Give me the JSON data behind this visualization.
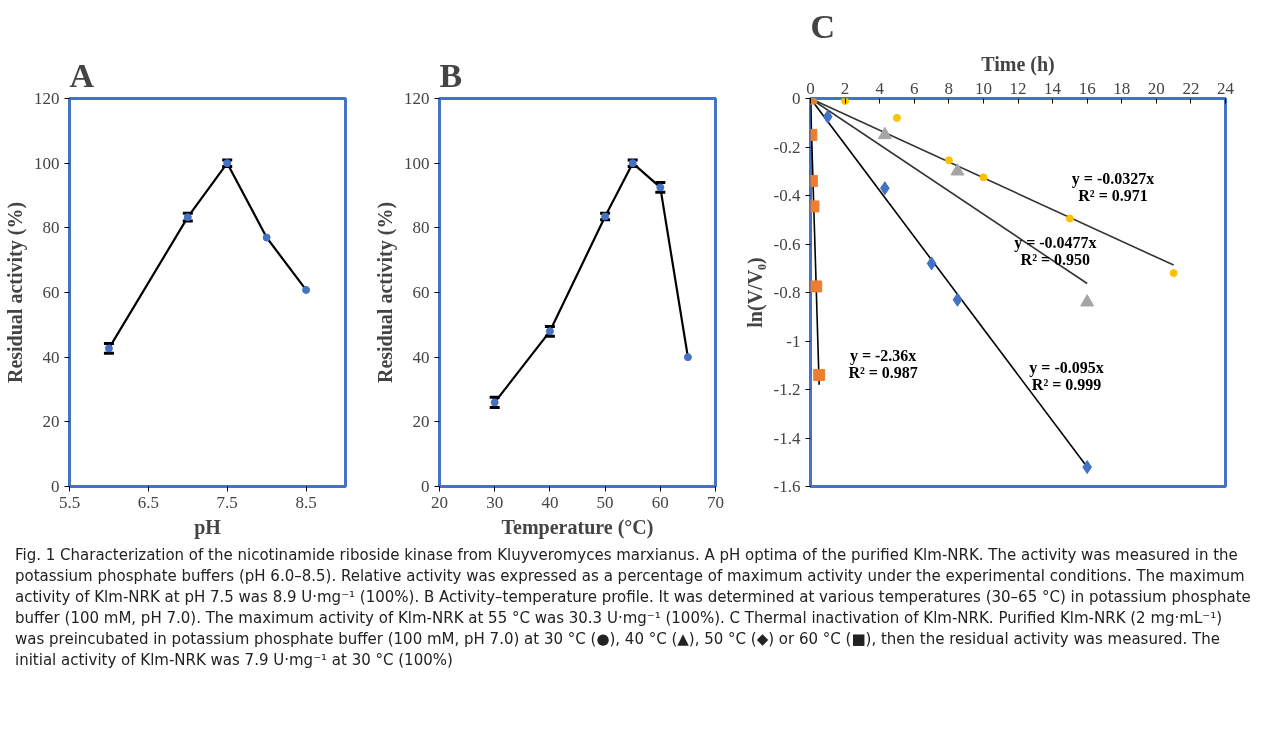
{
  "chart_data": [
    {
      "type": "line",
      "title": "A",
      "xlabel": "pH",
      "ylabel": "Residual activity (%)",
      "marker": "circle",
      "line_style": "solid",
      "grid": false,
      "x": [
        6,
        7,
        7.5,
        8,
        8.5
      ],
      "xlim": [
        5.5,
        9.0
      ],
      "xticks": [
        5.5,
        6.5,
        7.5,
        8.5
      ],
      "ylim": [
        0,
        120
      ],
      "yticks": [
        0,
        20,
        40,
        60,
        80,
        100,
        120
      ],
      "series": [
        {
          "color": "#4472c4",
          "values": [
            42.7,
            83.3,
            100,
            77,
            60.8
          ],
          "errors": [
            1.5,
            1.2,
            1,
            null,
            null
          ]
        }
      ]
    },
    {
      "type": "line",
      "title": "B",
      "xlabel": "Temperature (°C)",
      "ylabel": "Residual activity (%)",
      "marker": "circle",
      "line_style": "solid",
      "grid": false,
      "x": [
        30,
        40,
        50,
        55,
        60,
        65
      ],
      "xlim": [
        20,
        70
      ],
      "xticks": [
        20,
        30,
        40,
        50,
        60,
        70
      ],
      "ylim": [
        0,
        120
      ],
      "yticks": [
        0,
        20,
        40,
        60,
        80,
        100,
        120
      ],
      "series": [
        {
          "color": "#4472c4",
          "values": [
            26,
            48,
            83.5,
            100,
            92.5,
            40
          ],
          "errors": [
            1.6,
            1.5,
            1,
            1,
            1.5,
            null
          ]
        }
      ]
    },
    {
      "type": "scatter",
      "title": "C",
      "xlabel": "Time (h)",
      "ylabel": "ln(V/V₀)",
      "grid": false,
      "xlim": [
        0,
        24
      ],
      "xticks": [
        0,
        2,
        4,
        6,
        8,
        10,
        12,
        14,
        16,
        18,
        20,
        22,
        24
      ],
      "ylim": [
        -1.6,
        0
      ],
      "yticks": [
        -1.6,
        -1.4,
        -1.2,
        -1,
        -0.8,
        -0.6,
        -0.4,
        -0.2,
        0
      ],
      "series": [
        {
          "type": "line",
          "color": "#333333",
          "marker": "none",
          "x": [
            0,
            21
          ],
          "values": [
            0,
            -0.687
          ]
        },
        {
          "type": "line",
          "color": "#333333",
          "marker": "none",
          "x": [
            0,
            16
          ],
          "values": [
            0,
            -0.763
          ]
        },
        {
          "type": "line",
          "color": "#000000",
          "marker": "none",
          "x": [
            0,
            16
          ],
          "values": [
            0,
            -1.52
          ]
        },
        {
          "type": "line",
          "color": "#000000",
          "marker": "none",
          "x": [
            0,
            0.5
          ],
          "values": [
            0,
            -1.18
          ]
        },
        {
          "color": "#ffc000",
          "marker": "circle",
          "x": [
            0,
            2,
            5,
            8,
            10,
            15,
            21
          ],
          "values": [
            0,
            -0.01,
            -0.08,
            -0.255,
            -0.325,
            -0.495,
            -0.72
          ]
        },
        {
          "color": "#a5a5a5",
          "marker": "triangle",
          "x": [
            0,
            4.3,
            8.5,
            16
          ],
          "values": [
            0,
            -0.15,
            -0.3,
            -0.84
          ]
        },
        {
          "color": "#4472c4",
          "marker": "diamond",
          "x": [
            0,
            1,
            4.3,
            7,
            8.5,
            16
          ],
          "values": [
            0,
            -0.075,
            -0.37,
            -0.68,
            -0.83,
            -1.52
          ]
        },
        {
          "color": "#ed7d31",
          "marker": "square",
          "x": [
            0,
            0.05,
            0.08,
            0.17,
            0.33,
            0.5
          ],
          "values": [
            0,
            -0.15,
            -0.34,
            -0.445,
            -0.775,
            -1.14
          ]
        }
      ],
      "annotations": [
        "y = -0.0327x",
        "R² = 0.971",
        "y = -0.0477x",
        "R² = 0.950",
        "y = -2.36x",
        "R² = 0.987",
        "y = -0.095x",
        "R² = 0.999"
      ]
    },
    {
      "type": "other",
      "annotations": [
        "Fig. 1  Characterization of the nicotinamide riboside kinase from Kluyveromyces marxianus. A pH optima of the purified Klm-NRK. The activity was measured in the potassium phosphate buffers (pH 6.0–8.5). Relative activity was expressed as a percentage of maximum activity under the experimental conditions. The maximum activity of Klm-NRK at pH 7.5 was 8.9 U·mg⁻¹ (100%). B Activity–temperature profile. It was determined at various temperatures (30–65 °C) in potassium phosphate buffer (100 mM, pH 7.0). The maximum activity of Klm-NRK at 55 °C was 30.3 U·mg⁻¹ (100%). C Thermal inactivation of Klm-NRK. Purified Klm-NRK (2 mg·mL⁻¹) was preincubated in potassium phosphate buffer (100 mM, pH 7.0) at 30 °C (●), 40 °C (▲), 50 °C (◆) or 60 °C (■), then the residual activity was measured. The initial activity of Klm-NRK was 7.9 U·mg⁻¹ at 30 °C (100%)"
      ]
    }
  ]
}
